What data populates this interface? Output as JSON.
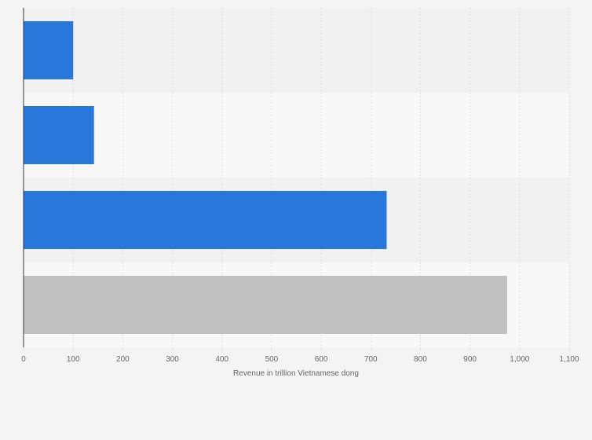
{
  "chart_data": {
    "type": "bar",
    "orientation": "horizontal",
    "categories": [
      "",
      "",
      "",
      ""
    ],
    "values": [
      100,
      142,
      732,
      975
    ],
    "bar_colors": [
      "#2878dc",
      "#2878dc",
      "#2878dc",
      "#c0c0c0"
    ],
    "xlabel": "Revenue in trillion Vietnamese dong",
    "xlim": [
      0,
      1100
    ],
    "x_ticks": [
      0,
      100,
      200,
      300,
      400,
      500,
      600,
      700,
      800,
      900,
      1000,
      1100
    ],
    "x_tick_labels": [
      "0",
      "100",
      "200",
      "300",
      "400",
      "500",
      "600",
      "700",
      "800",
      "900",
      "1,000",
      "1,100"
    ],
    "grid": true,
    "colors": {
      "background": "#f4f4f4",
      "band_dark": "#f1f1f1",
      "band_light": "#f8f8f8",
      "grid": "#dddddd",
      "axis": "#333333"
    }
  }
}
